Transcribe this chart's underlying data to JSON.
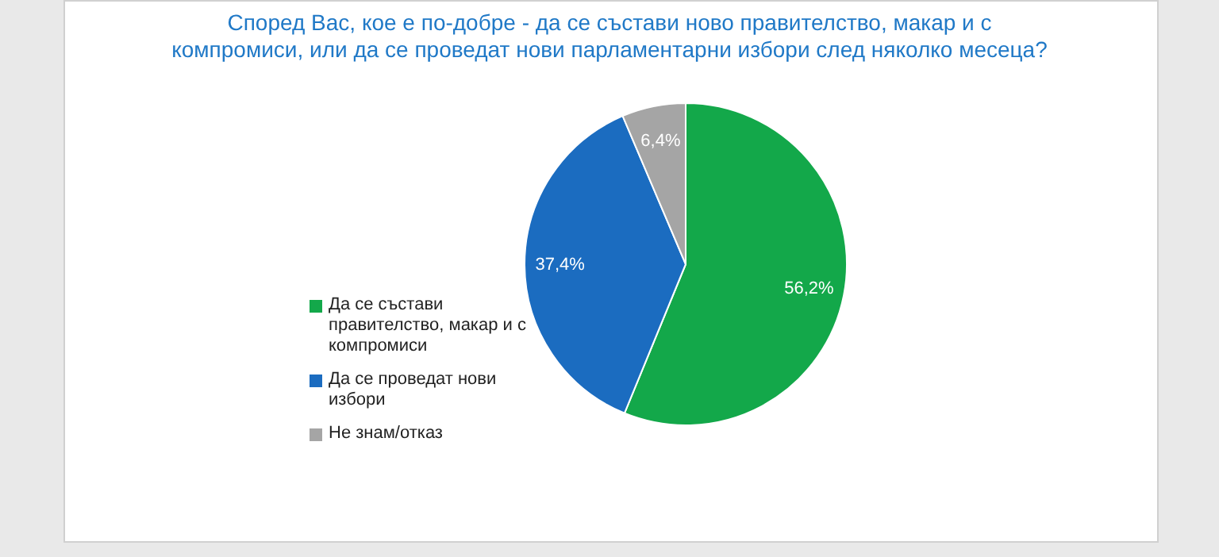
{
  "chart_data": {
    "type": "pie",
    "title": "Според Вас, кое е по-добре - да се състави ново правителство, макар и с компромиси, или да се проведат нови парламентарни избори след няколко месеца?",
    "categories": [
      "Да се състави правителство, макар и с компромиси",
      "Да се проведат нови избори",
      "Не знам/отказ"
    ],
    "values": [
      56.2,
      37.4,
      6.4
    ],
    "colors": [
      "#13a84a",
      "#1b6cc0",
      "#a5a5a5"
    ],
    "value_labels": [
      "56,2%",
      "37,4%",
      "6,4%"
    ],
    "legend": "left"
  }
}
